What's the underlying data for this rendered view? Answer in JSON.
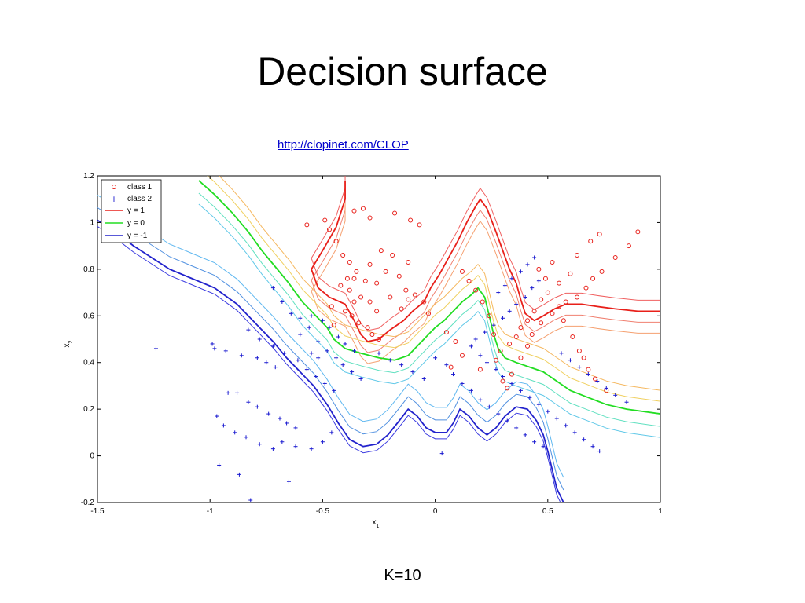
{
  "slide": {
    "title": "Decision surface",
    "link": "http://clopinet.com/CLOP",
    "caption": "K=10"
  },
  "chart_data": {
    "type": "scatter",
    "xlabel_main": "x",
    "xlabel_sub": "1",
    "ylabel_main": "x",
    "ylabel_sub": "2",
    "xlim": [
      -1.5,
      1
    ],
    "ylim": [
      -0.2,
      1.2
    ],
    "xticks": [
      -1.5,
      -1,
      -0.5,
      0,
      0.5,
      1
    ],
    "xtick_labels": [
      "-1.5",
      "-1",
      "-0.5",
      "0",
      "0.5",
      "1"
    ],
    "yticks": [
      -0.2,
      0,
      0.2,
      0.4,
      0.6,
      0.8,
      1,
      1.2
    ],
    "ytick_labels": [
      "-0.2",
      "0",
      "0.2",
      "0.4",
      "0.6",
      "0.8",
      "1",
      "1.2"
    ],
    "legend": [
      "class 1",
      "class 2",
      "y = 1",
      "y = 0",
      "y = -1"
    ],
    "legend_location": "top-left",
    "colors": {
      "class1": "#e8201a",
      "class2": "#1a1ad0",
      "y1": "#e8201a",
      "y0": "#22dd22",
      "yneg1": "#2222cc"
    },
    "class1": [
      [
        -0.57,
        0.99
      ],
      [
        -0.49,
        1.01
      ],
      [
        -0.36,
        1.05
      ],
      [
        -0.32,
        1.06
      ],
      [
        -0.29,
        1.02
      ],
      [
        -0.18,
        1.04
      ],
      [
        -0.11,
        1.01
      ],
      [
        -0.07,
        0.99
      ],
      [
        -0.47,
        0.97
      ],
      [
        -0.44,
        0.92
      ],
      [
        -0.41,
        0.86
      ],
      [
        -0.38,
        0.83
      ],
      [
        -0.36,
        0.76
      ],
      [
        -0.26,
        0.74
      ],
      [
        -0.2,
        0.68
      ],
      [
        -0.15,
        0.63
      ],
      [
        -0.12,
        0.67
      ],
      [
        -0.09,
        0.69
      ],
      [
        -0.05,
        0.66
      ],
      [
        -0.03,
        0.61
      ],
      [
        -0.29,
        0.82
      ],
      [
        -0.22,
        0.79
      ],
      [
        -0.16,
        0.77
      ],
      [
        -0.13,
        0.71
      ],
      [
        -0.24,
        0.88
      ],
      [
        -0.19,
        0.86
      ],
      [
        -0.12,
        0.83
      ],
      [
        -0.35,
        0.79
      ],
      [
        -0.31,
        0.75
      ],
      [
        -0.42,
        0.73
      ],
      [
        -0.38,
        0.71
      ],
      [
        -0.33,
        0.68
      ],
      [
        -0.29,
        0.66
      ],
      [
        -0.4,
        0.62
      ],
      [
        -0.37,
        0.6
      ],
      [
        -0.34,
        0.57
      ],
      [
        -0.46,
        0.64
      ],
      [
        -0.45,
        0.56
      ],
      [
        -0.3,
        0.55
      ],
      [
        -0.28,
        0.52
      ],
      [
        -0.25,
        0.5
      ],
      [
        -0.36,
        0.66
      ],
      [
        -0.39,
        0.76
      ],
      [
        -0.26,
        0.62
      ],
      [
        0.05,
        0.53
      ],
      [
        0.09,
        0.49
      ],
      [
        0.12,
        0.43
      ],
      [
        0.07,
        0.38
      ],
      [
        0.2,
        0.37
      ],
      [
        0.27,
        0.41
      ],
      [
        0.3,
        0.32
      ],
      [
        0.32,
        0.29
      ],
      [
        0.34,
        0.35
      ],
      [
        0.38,
        0.42
      ],
      [
        0.41,
        0.47
      ],
      [
        0.43,
        0.52
      ],
      [
        0.47,
        0.57
      ],
      [
        0.52,
        0.61
      ],
      [
        0.55,
        0.64
      ],
      [
        0.58,
        0.66
      ],
      [
        0.63,
        0.68
      ],
      [
        0.67,
        0.72
      ],
      [
        0.7,
        0.76
      ],
      [
        0.74,
        0.79
      ],
      [
        0.8,
        0.85
      ],
      [
        0.86,
        0.9
      ],
      [
        0.9,
        0.96
      ],
      [
        0.63,
        0.86
      ],
      [
        0.69,
        0.92
      ],
      [
        0.73,
        0.95
      ],
      [
        0.6,
        0.78
      ],
      [
        0.55,
        0.74
      ],
      [
        0.5,
        0.7
      ],
      [
        0.47,
        0.67
      ],
      [
        0.44,
        0.62
      ],
      [
        0.41,
        0.58
      ],
      [
        0.38,
        0.55
      ],
      [
        0.36,
        0.51
      ],
      [
        0.33,
        0.48
      ],
      [
        0.29,
        0.45
      ],
      [
        0.26,
        0.52
      ],
      [
        0.24,
        0.6
      ],
      [
        0.21,
        0.66
      ],
      [
        0.18,
        0.71
      ],
      [
        0.15,
        0.75
      ],
      [
        0.12,
        0.79
      ],
      [
        0.46,
        0.8
      ],
      [
        0.49,
        0.76
      ],
      [
        0.52,
        0.83
      ],
      [
        0.57,
        0.58
      ],
      [
        0.61,
        0.51
      ],
      [
        0.64,
        0.45
      ],
      [
        0.66,
        0.42
      ],
      [
        0.68,
        0.37
      ],
      [
        0.71,
        0.33
      ],
      [
        0.76,
        0.28
      ]
    ],
    "class2": [
      [
        -1.24,
        0.46
      ],
      [
        -0.99,
        0.48
      ],
      [
        -0.98,
        0.46
      ],
      [
        -0.93,
        0.45
      ],
      [
        -0.86,
        0.43
      ],
      [
        -0.79,
        0.42
      ],
      [
        -0.75,
        0.4
      ],
      [
        -0.71,
        0.38
      ],
      [
        -0.92,
        0.27
      ],
      [
        -0.88,
        0.27
      ],
      [
        -0.83,
        0.23
      ],
      [
        -0.79,
        0.21
      ],
      [
        -0.74,
        0.18
      ],
      [
        -0.69,
        0.16
      ],
      [
        -0.66,
        0.14
      ],
      [
        -0.62,
        0.12
      ],
      [
        -0.97,
        0.17
      ],
      [
        -0.94,
        0.13
      ],
      [
        -0.89,
        0.1
      ],
      [
        -0.84,
        0.08
      ],
      [
        -0.78,
        0.05
      ],
      [
        -0.72,
        0.03
      ],
      [
        -0.68,
        0.06
      ],
      [
        -0.62,
        0.04
      ],
      [
        -0.55,
        0.03
      ],
      [
        -0.5,
        0.06
      ],
      [
        -0.46,
        0.1
      ],
      [
        -0.96,
        -0.04
      ],
      [
        -0.87,
        -0.08
      ],
      [
        -0.82,
        -0.19
      ],
      [
        -0.65,
        -0.11
      ],
      [
        -0.83,
        0.54
      ],
      [
        -0.78,
        0.5
      ],
      [
        -0.72,
        0.47
      ],
      [
        -0.67,
        0.44
      ],
      [
        -0.61,
        0.41
      ],
      [
        -0.57,
        0.37
      ],
      [
        -0.53,
        0.34
      ],
      [
        -0.49,
        0.31
      ],
      [
        -0.45,
        0.28
      ],
      [
        -0.6,
        0.52
      ],
      [
        -0.56,
        0.55
      ],
      [
        -0.52,
        0.49
      ],
      [
        -0.48,
        0.45
      ],
      [
        -0.44,
        0.42
      ],
      [
        -0.41,
        0.39
      ],
      [
        -0.37,
        0.36
      ],
      [
        -0.33,
        0.33
      ],
      [
        -0.72,
        0.72
      ],
      [
        -0.68,
        0.66
      ],
      [
        -0.64,
        0.61
      ],
      [
        -0.6,
        0.59
      ],
      [
        -0.55,
        0.6
      ],
      [
        -0.5,
        0.58
      ],
      [
        -0.47,
        0.55
      ],
      [
        -0.43,
        0.51
      ],
      [
        -0.4,
        0.48
      ],
      [
        -0.36,
        0.45
      ],
      [
        -0.55,
        0.44
      ],
      [
        -0.52,
        0.42
      ],
      [
        -0.25,
        0.44
      ],
      [
        -0.2,
        0.41
      ],
      [
        -0.15,
        0.39
      ],
      [
        -0.1,
        0.36
      ],
      [
        -0.05,
        0.33
      ],
      [
        0.0,
        0.42
      ],
      [
        0.05,
        0.39
      ],
      [
        0.08,
        0.35
      ],
      [
        0.12,
        0.31
      ],
      [
        0.16,
        0.28
      ],
      [
        0.2,
        0.24
      ],
      [
        0.24,
        0.21
      ],
      [
        0.28,
        0.18
      ],
      [
        0.32,
        0.15
      ],
      [
        0.36,
        0.12
      ],
      [
        0.4,
        0.09
      ],
      [
        0.44,
        0.06
      ],
      [
        0.48,
        0.04
      ],
      [
        0.18,
        0.5
      ],
      [
        0.22,
        0.53
      ],
      [
        0.26,
        0.56
      ],
      [
        0.3,
        0.59
      ],
      [
        0.33,
        0.62
      ],
      [
        0.36,
        0.65
      ],
      [
        0.4,
        0.68
      ],
      [
        0.43,
        0.72
      ],
      [
        0.46,
        0.75
      ],
      [
        0.16,
        0.47
      ],
      [
        0.2,
        0.43
      ],
      [
        0.23,
        0.4
      ],
      [
        0.27,
        0.37
      ],
      [
        0.3,
        0.34
      ],
      [
        0.34,
        0.31
      ],
      [
        0.38,
        0.28
      ],
      [
        0.42,
        0.25
      ],
      [
        0.46,
        0.22
      ],
      [
        0.5,
        0.19
      ],
      [
        0.54,
        0.16
      ],
      [
        0.58,
        0.13
      ],
      [
        0.62,
        0.1
      ],
      [
        0.66,
        0.07
      ],
      [
        0.7,
        0.04
      ],
      [
        0.73,
        0.02
      ],
      [
        0.03,
        0.01
      ],
      [
        0.56,
        0.44
      ],
      [
        0.6,
        0.41
      ],
      [
        0.64,
        0.38
      ],
      [
        0.68,
        0.35
      ],
      [
        0.72,
        0.32
      ],
      [
        0.76,
        0.29
      ],
      [
        0.8,
        0.26
      ],
      [
        0.85,
        0.23
      ],
      [
        0.28,
        0.7
      ],
      [
        0.31,
        0.73
      ],
      [
        0.34,
        0.76
      ],
      [
        0.38,
        0.79
      ],
      [
        0.41,
        0.82
      ],
      [
        0.44,
        0.85
      ]
    ],
    "contour_y1": [
      [
        -0.4,
        1.18
      ],
      [
        -0.4,
        1.1
      ],
      [
        -0.44,
        0.98
      ],
      [
        -0.5,
        0.88
      ],
      [
        -0.55,
        0.8
      ],
      [
        -0.52,
        0.72
      ],
      [
        -0.47,
        0.68
      ],
      [
        -0.4,
        0.65
      ],
      [
        -0.36,
        0.58
      ],
      [
        -0.33,
        0.52
      ],
      [
        -0.3,
        0.49
      ],
      [
        -0.25,
        0.5
      ],
      [
        -0.2,
        0.54
      ],
      [
        -0.14,
        0.58
      ],
      [
        -0.1,
        0.62
      ],
      [
        -0.05,
        0.66
      ],
      [
        -0.02,
        0.72
      ],
      [
        0.02,
        0.78
      ],
      [
        0.06,
        0.85
      ],
      [
        0.1,
        0.92
      ],
      [
        0.14,
        1.0
      ],
      [
        0.18,
        1.07
      ],
      [
        0.2,
        1.1
      ],
      [
        0.23,
        1.06
      ],
      [
        0.27,
        0.96
      ],
      [
        0.3,
        0.88
      ],
      [
        0.33,
        0.8
      ],
      [
        0.36,
        0.74
      ],
      [
        0.38,
        0.67
      ],
      [
        0.4,
        0.61
      ],
      [
        0.44,
        0.58
      ],
      [
        0.48,
        0.6
      ],
      [
        0.53,
        0.63
      ],
      [
        0.58,
        0.65
      ],
      [
        0.65,
        0.65
      ],
      [
        0.72,
        0.64
      ],
      [
        0.8,
        0.63
      ],
      [
        0.9,
        0.62
      ],
      [
        1.0,
        0.62
      ]
    ],
    "contour_y0": [
      [
        -1.05,
        1.18
      ],
      [
        -0.98,
        1.12
      ],
      [
        -0.9,
        1.04
      ],
      [
        -0.83,
        0.96
      ],
      [
        -0.77,
        0.88
      ],
      [
        -0.71,
        0.81
      ],
      [
        -0.65,
        0.74
      ],
      [
        -0.59,
        0.66
      ],
      [
        -0.53,
        0.6
      ],
      [
        -0.48,
        0.55
      ],
      [
        -0.45,
        0.5
      ],
      [
        -0.4,
        0.46
      ],
      [
        -0.33,
        0.44
      ],
      [
        -0.25,
        0.42
      ],
      [
        -0.18,
        0.41
      ],
      [
        -0.12,
        0.43
      ],
      [
        -0.08,
        0.47
      ],
      [
        -0.04,
        0.51
      ],
      [
        0.0,
        0.55
      ],
      [
        0.04,
        0.58
      ],
      [
        0.08,
        0.62
      ],
      [
        0.12,
        0.66
      ],
      [
        0.16,
        0.69
      ],
      [
        0.19,
        0.72
      ],
      [
        0.22,
        0.68
      ],
      [
        0.24,
        0.6
      ],
      [
        0.26,
        0.52
      ],
      [
        0.28,
        0.46
      ],
      [
        0.31,
        0.42
      ],
      [
        0.36,
        0.4
      ],
      [
        0.42,
        0.38
      ],
      [
        0.48,
        0.36
      ],
      [
        0.54,
        0.32
      ],
      [
        0.6,
        0.28
      ],
      [
        0.68,
        0.25
      ],
      [
        0.76,
        0.22
      ],
      [
        0.85,
        0.2
      ],
      [
        1.0,
        0.18
      ]
    ],
    "contour_yneg1": [
      [
        -1.5,
        1.01
      ],
      [
        -1.42,
        0.96
      ],
      [
        -1.34,
        0.9
      ],
      [
        -1.26,
        0.85
      ],
      [
        -1.18,
        0.8
      ],
      [
        -1.08,
        0.76
      ],
      [
        -0.98,
        0.72
      ],
      [
        -0.88,
        0.65
      ],
      [
        -0.8,
        0.57
      ],
      [
        -0.72,
        0.49
      ],
      [
        -0.66,
        0.42
      ],
      [
        -0.6,
        0.36
      ],
      [
        -0.54,
        0.3
      ],
      [
        -0.48,
        0.22
      ],
      [
        -0.43,
        0.14
      ],
      [
        -0.38,
        0.07
      ],
      [
        -0.32,
        0.04
      ],
      [
        -0.26,
        0.05
      ],
      [
        -0.21,
        0.09
      ],
      [
        -0.16,
        0.15
      ],
      [
        -0.12,
        0.2
      ],
      [
        -0.08,
        0.17
      ],
      [
        -0.04,
        0.12
      ],
      [
        0.0,
        0.1
      ],
      [
        0.05,
        0.1
      ],
      [
        0.08,
        0.14
      ],
      [
        0.11,
        0.2
      ],
      [
        0.15,
        0.17
      ],
      [
        0.19,
        0.12
      ],
      [
        0.23,
        0.09
      ],
      [
        0.27,
        0.12
      ],
      [
        0.31,
        0.17
      ],
      [
        0.36,
        0.21
      ],
      [
        0.41,
        0.2
      ],
      [
        0.45,
        0.15
      ],
      [
        0.48,
        0.09
      ],
      [
        0.5,
        0.02
      ],
      [
        0.52,
        -0.06
      ],
      [
        0.54,
        -0.14
      ],
      [
        0.57,
        -0.2
      ]
    ]
  }
}
